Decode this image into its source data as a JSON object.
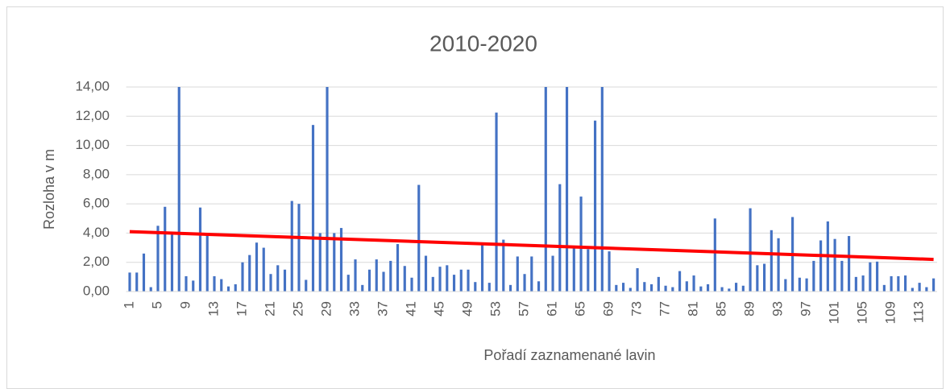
{
  "chart_data": {
    "type": "bar",
    "title": "2010-2020",
    "x_label": "Pořadí zaznamenané lavin",
    "y_label": "Rozloha v m",
    "color": "#4472c4",
    "grid": true,
    "categories": [
      "1",
      null,
      null,
      null,
      "5",
      null,
      null,
      null,
      "9",
      null,
      null,
      null,
      "13",
      null,
      null,
      null,
      "17",
      null,
      null,
      null,
      "21",
      null,
      null,
      null,
      "25",
      null,
      null,
      null,
      "29",
      null,
      null,
      null,
      "33",
      null,
      null,
      null,
      "37",
      null,
      null,
      null,
      "41",
      null,
      null,
      null,
      "45",
      null,
      null,
      null,
      "49",
      null,
      null,
      null,
      "53",
      null,
      null,
      null,
      "57",
      null,
      null,
      null,
      "61",
      null,
      null,
      null,
      "65",
      null,
      null,
      null,
      "69",
      null,
      null,
      null,
      "73",
      null,
      null,
      null,
      "77",
      null,
      null,
      null,
      "81",
      null,
      null,
      null,
      "85",
      null,
      null,
      null,
      "89",
      null,
      null,
      null,
      "93",
      null,
      null,
      null,
      "97",
      null,
      null,
      null,
      "101",
      null,
      null,
      null,
      "105",
      null,
      null,
      null,
      "109",
      null,
      null,
      null,
      "113",
      null,
      null
    ],
    "values": [
      1.3,
      1.3,
      2.6,
      0.3,
      4.5,
      5.8,
      3.9,
      14,
      1.05,
      0.75,
      5.75,
      3.9,
      1.05,
      0.85,
      0.35,
      0.5,
      2.0,
      2.5,
      3.35,
      3.0,
      1.2,
      1.8,
      1.5,
      6.2,
      6.0,
      0.8,
      11.4,
      4.0,
      14,
      4.0,
      4.35,
      1.15,
      2.2,
      0.45,
      1.5,
      2.2,
      1.35,
      2.1,
      3.25,
      1.75,
      0.95,
      7.3,
      2.45,
      1.0,
      1.7,
      1.8,
      1.15,
      1.5,
      1.5,
      0.65,
      3.3,
      0.6,
      12.25,
      3.55,
      0.45,
      2.4,
      1.2,
      2.4,
      0.7,
      14,
      2.45,
      7.35,
      14,
      3.0,
      6.5,
      2.9,
      11.7,
      14,
      2.75,
      0.45,
      0.6,
      0.25,
      1.6,
      0.65,
      0.5,
      1.0,
      0.4,
      0.3,
      1.4,
      0.7,
      1.1,
      0.35,
      0.5,
      5.0,
      0.3,
      0.2,
      0.6,
      0.4,
      5.7,
      1.8,
      1.9,
      4.2,
      3.65,
      0.85,
      5.1,
      0.95,
      0.9,
      2.1,
      3.5,
      4.8,
      3.6,
      2.1,
      3.8,
      1.0,
      1.1,
      2.0,
      2.05,
      0.45,
      1.05,
      1.05,
      1.1,
      0.25,
      0.6,
      0.3,
      0.9
    ],
    "trendline": {
      "color": "#ff0000",
      "start": 4.1,
      "end": 2.2
    },
    "ylim": [
      0,
      14
    ],
    "yticks": [
      {
        "value": 0,
        "label": "0,00"
      },
      {
        "value": 2,
        "label": "2,00"
      },
      {
        "value": 4,
        "label": "4,00"
      },
      {
        "value": 6,
        "label": "6,00"
      },
      {
        "value": 8,
        "label": "8,00"
      },
      {
        "value": 10,
        "label": "10,00"
      },
      {
        "value": 12,
        "label": "12,00"
      },
      {
        "value": 14,
        "label": "14,00"
      }
    ]
  }
}
